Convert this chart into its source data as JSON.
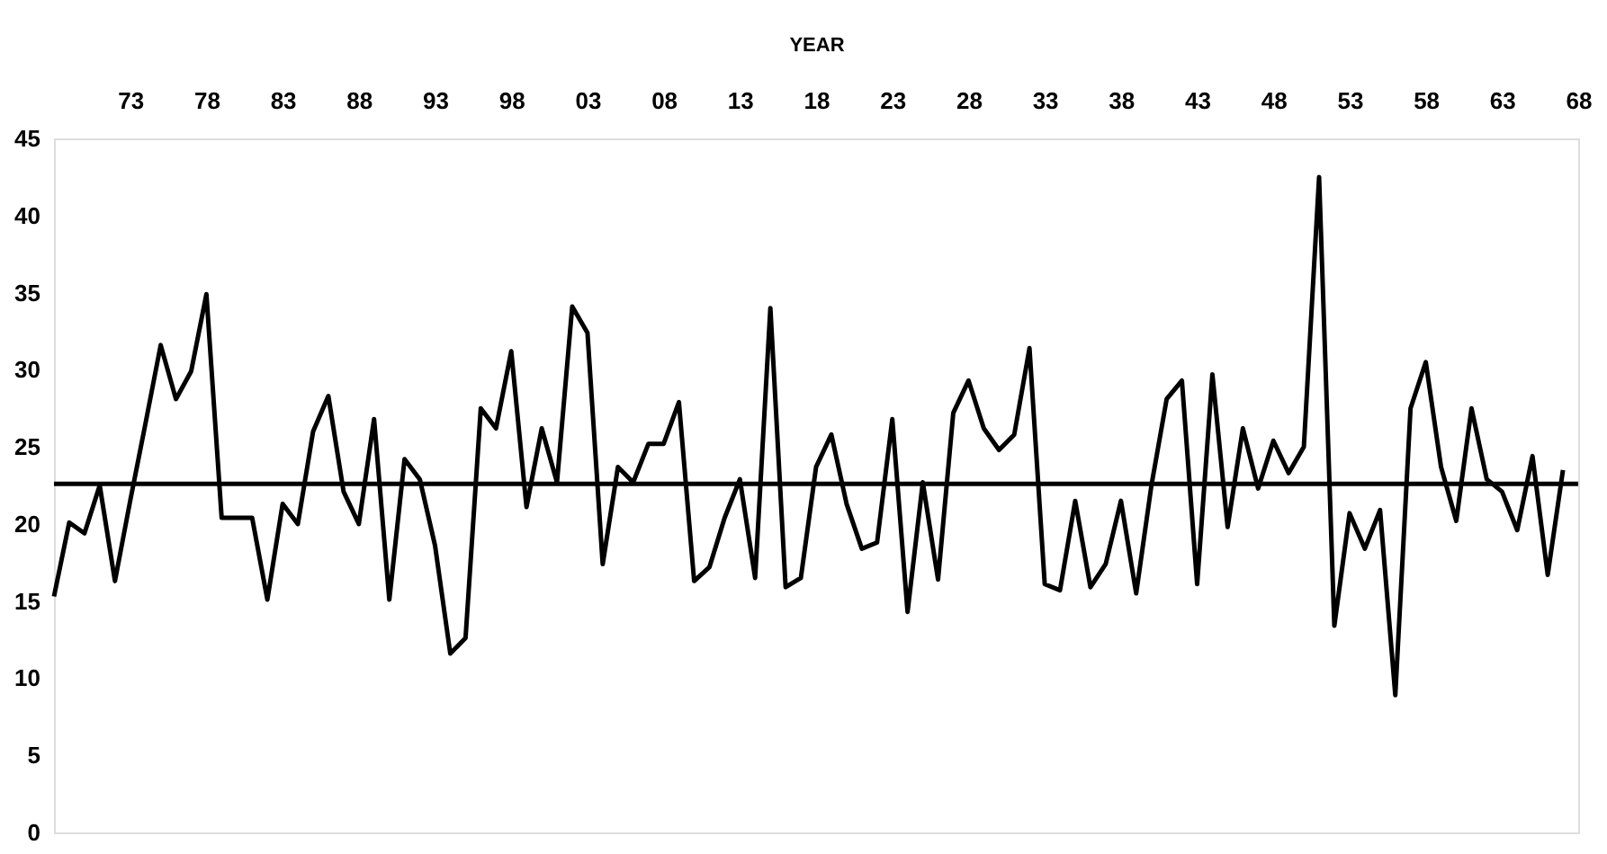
{
  "chart_data": {
    "type": "line",
    "xlabel": "YEAR",
    "x": [
      1868,
      1869,
      1870,
      1871,
      1872,
      1873,
      1874,
      1875,
      1876,
      1877,
      1878,
      1879,
      1880,
      1881,
      1882,
      1883,
      1884,
      1885,
      1886,
      1887,
      1888,
      1889,
      1890,
      1891,
      1892,
      1893,
      1894,
      1895,
      1896,
      1897,
      1898,
      1899,
      1900,
      1901,
      1902,
      1903,
      1904,
      1905,
      1906,
      1907,
      1908,
      1909,
      1910,
      1911,
      1912,
      1913,
      1914,
      1915,
      1916,
      1917,
      1918,
      1919,
      1920,
      1921,
      1922,
      1923,
      1924,
      1925,
      1926,
      1927,
      1928,
      1929,
      1930,
      1931,
      1932,
      1933,
      1934,
      1935,
      1936,
      1937,
      1938,
      1939,
      1940,
      1941,
      1942,
      1943,
      1944,
      1945,
      1946,
      1947,
      1948,
      1949,
      1950,
      1951,
      1952,
      1953,
      1954,
      1955,
      1956,
      1957,
      1958,
      1959,
      1960,
      1961,
      1962,
      1963,
      1964,
      1965,
      1966,
      1967
    ],
    "series": [
      {
        "color": "#000000",
        "values": [
          15.3,
          20.1,
          19.4,
          22.5,
          16.3,
          21.5,
          26.5,
          31.6,
          28.1,
          29.9,
          34.9,
          20.4,
          20.4,
          20.4,
          15.1,
          21.3,
          20.0,
          26.0,
          28.3,
          22.1,
          20.0,
          26.8,
          15.1,
          24.2,
          22.9,
          18.6,
          11.6,
          12.6,
          27.5,
          26.2,
          31.2,
          21.1,
          26.2,
          22.7,
          34.1,
          32.4,
          17.4,
          23.7,
          22.7,
          25.2,
          25.2,
          27.9,
          16.3,
          17.2,
          20.4,
          22.9,
          16.5,
          34.0,
          15.9,
          16.5,
          23.7,
          25.8,
          21.3,
          18.4,
          18.8,
          26.8,
          14.3,
          22.7,
          16.4,
          27.2,
          29.3,
          26.2,
          24.8,
          25.8,
          31.4,
          16.1,
          15.7,
          21.5,
          15.9,
          17.4,
          21.5,
          15.5,
          22.5,
          28.1,
          29.3,
          16.1,
          29.7,
          19.8,
          26.2,
          22.3,
          25.4,
          23.3,
          25.0,
          42.5,
          13.4,
          20.7,
          18.4,
          20.9,
          8.9,
          27.5,
          30.5,
          23.7,
          20.2,
          27.5,
          22.9,
          22.1,
          19.6,
          24.4,
          16.7,
          23.5
        ]
      }
    ],
    "xlim": [
      1868,
      1968
    ],
    "xticks": [
      {
        "value": 1873,
        "label": "73"
      },
      {
        "value": 1878,
        "label": "78"
      },
      {
        "value": 1883,
        "label": "83"
      },
      {
        "value": 1888,
        "label": "88"
      },
      {
        "value": 1893,
        "label": "93"
      },
      {
        "value": 1898,
        "label": "98"
      },
      {
        "value": 1903,
        "label": "03"
      },
      {
        "value": 1908,
        "label": "08"
      },
      {
        "value": 1913,
        "label": "13"
      },
      {
        "value": 1918,
        "label": "18"
      },
      {
        "value": 1923,
        "label": "23"
      },
      {
        "value": 1928,
        "label": "28"
      },
      {
        "value": 1933,
        "label": "33"
      },
      {
        "value": 1938,
        "label": "38"
      },
      {
        "value": 1943,
        "label": "43"
      },
      {
        "value": 1948,
        "label": "48"
      },
      {
        "value": 1953,
        "label": "53"
      },
      {
        "value": 1958,
        "label": "58"
      },
      {
        "value": 1963,
        "label": "63"
      },
      {
        "value": 1968,
        "label": "68"
      }
    ],
    "ylim": [
      0,
      45
    ],
    "yticks": [
      0,
      5,
      10,
      15,
      20,
      25,
      30,
      35,
      40,
      45
    ],
    "ref_lines": [
      {
        "axis": "y",
        "value": 22.6,
        "color": "#000000"
      }
    ],
    "grid": false,
    "marker": "none",
    "line_style": "solid"
  }
}
